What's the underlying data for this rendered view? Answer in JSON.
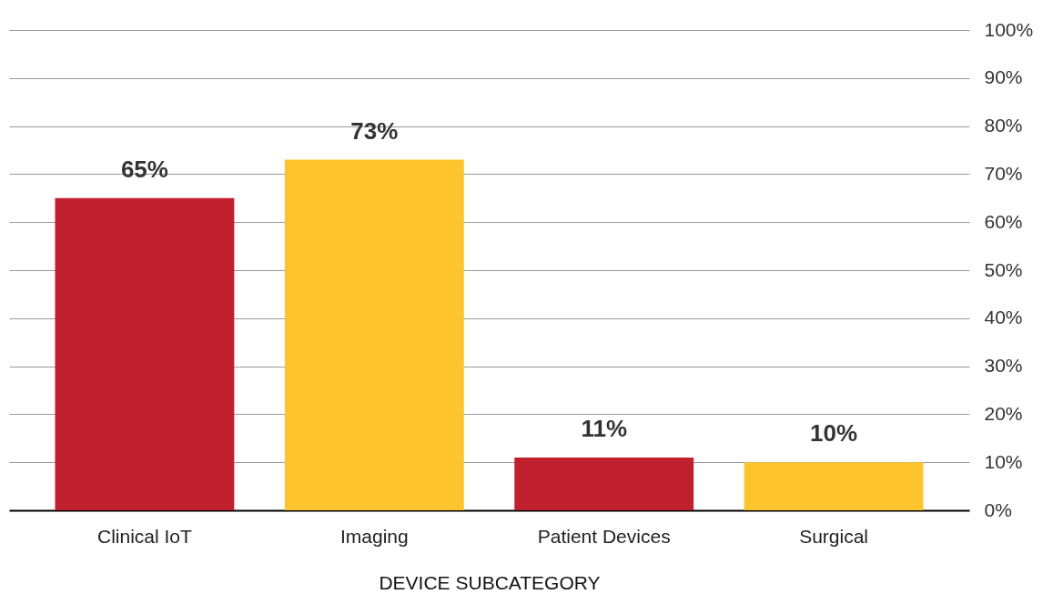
{
  "chart_data": {
    "type": "bar",
    "xlabel": "DEVICE SUBCATEGORY",
    "categories": [
      "Clinical IoT",
      "Imaging",
      "Patient Devices",
      "Surgical"
    ],
    "values": [
      65,
      73,
      11,
      10
    ],
    "colors": [
      "#c1202f",
      "#fdc42d",
      "#c1202f",
      "#fdc42d"
    ],
    "ylim": [
      0,
      100
    ],
    "yticks": [
      {
        "value": 0,
        "label": "0%"
      },
      {
        "value": 10,
        "label": "10%"
      },
      {
        "value": 20,
        "label": "20%"
      },
      {
        "value": 30,
        "label": "30%"
      },
      {
        "value": 40,
        "label": "40%"
      },
      {
        "value": 50,
        "label": "50%"
      },
      {
        "value": 60,
        "label": "60%"
      },
      {
        "value": 70,
        "label": "70%"
      },
      {
        "value": 80,
        "label": "80%"
      },
      {
        "value": 90,
        "label": "90%"
      },
      {
        "value": 100,
        "label": "100%"
      }
    ],
    "value_labels": [
      "65%",
      "73%",
      "11%",
      "10%"
    ],
    "grid": "y"
  }
}
